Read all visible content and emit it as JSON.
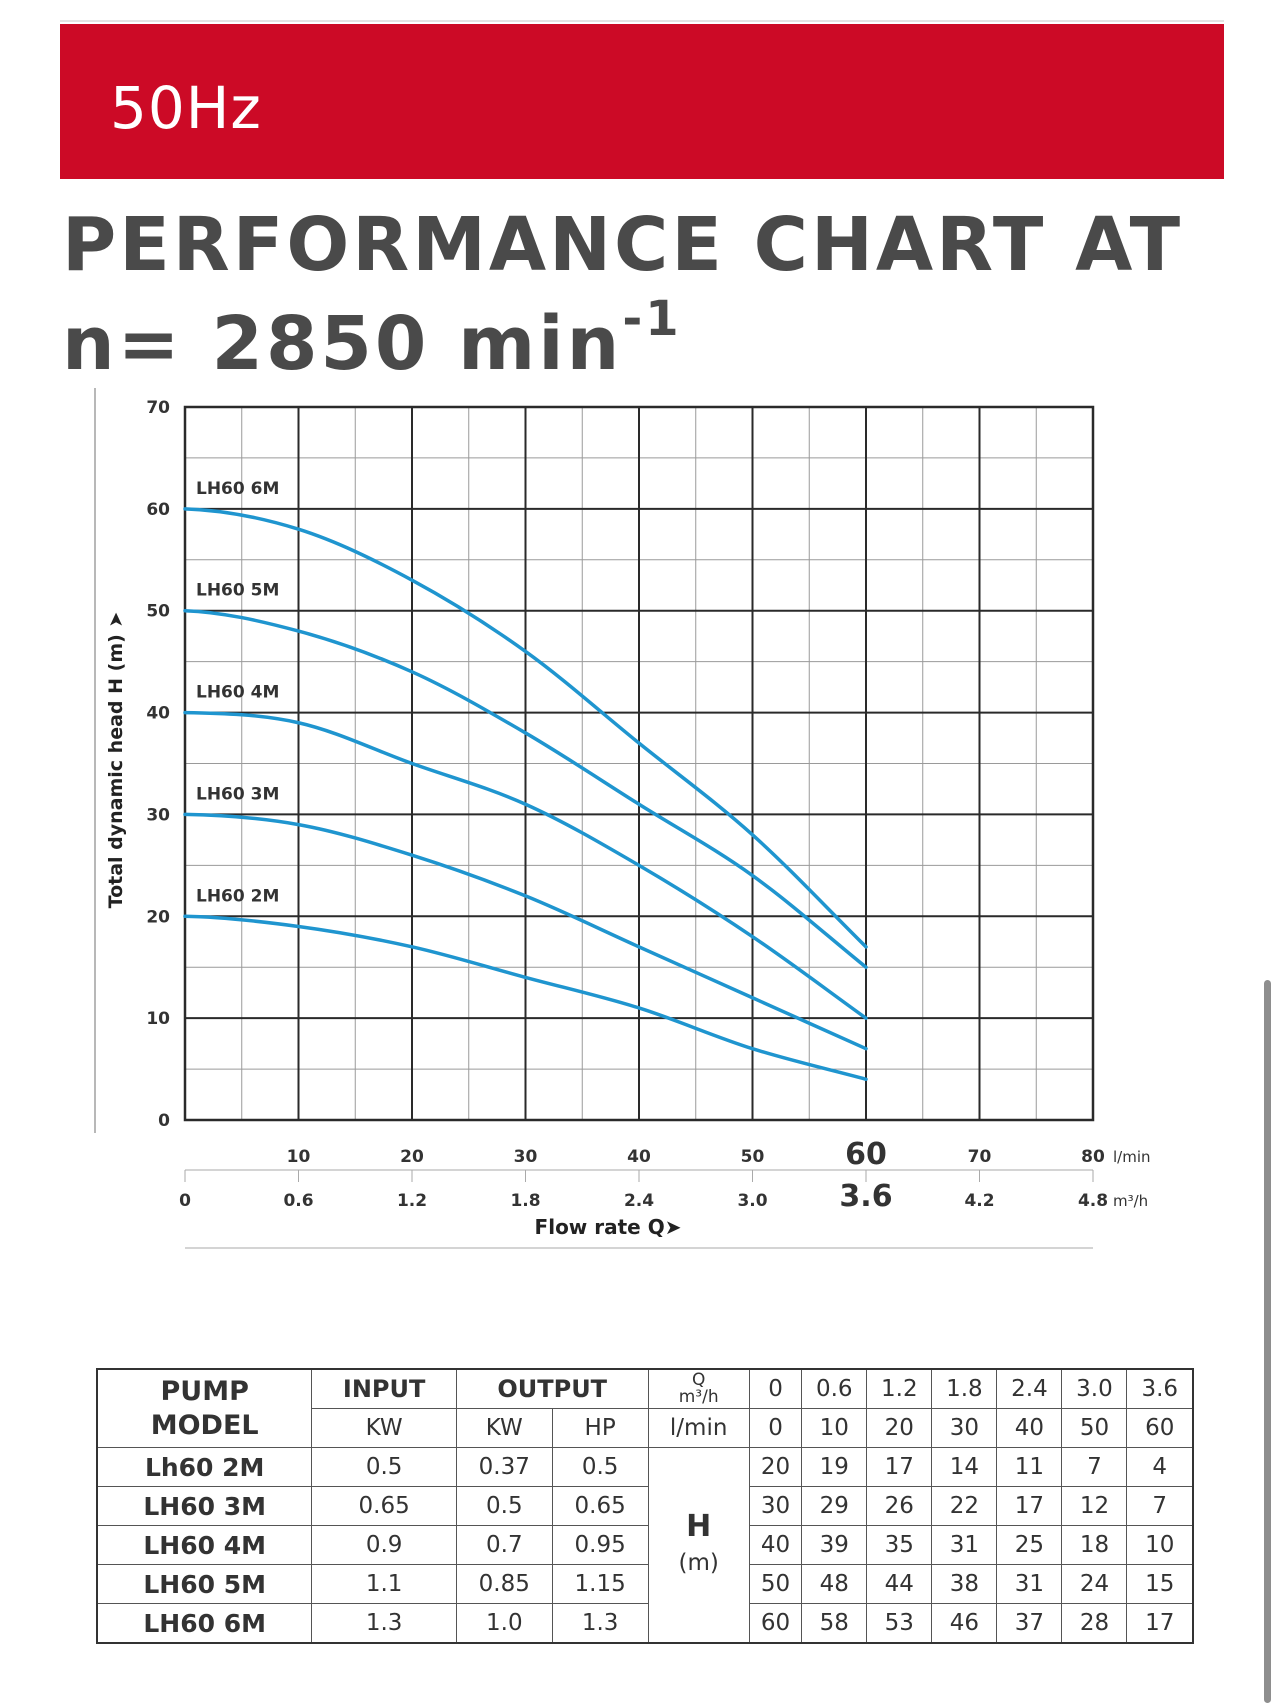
{
  "banner": {
    "text": "50Hz",
    "color": "#cc0a26"
  },
  "title": {
    "line1": "PERFORMANCE CHART AT",
    "line2_main": "n= 2850 min",
    "line2_sup": "-1"
  },
  "chart_data": {
    "type": "line",
    "title": "PERFORMANCE CHART AT n= 2850 min-1",
    "ylabel": "Total dynamic head H (m)",
    "xlabel": "Flow rate Q",
    "ylim": [
      0,
      70
    ],
    "xlim": [
      0,
      80
    ],
    "y_ticks": [
      "0",
      "10",
      "20",
      "30",
      "40",
      "50",
      "60",
      "70"
    ],
    "x_ticks_lmin": [
      "10",
      "20",
      "30",
      "40",
      "50",
      "60",
      "70",
      "80"
    ],
    "x_unit_lmin": "l/min",
    "x_ticks_m3h": [
      "0",
      "0.6",
      "1.2",
      "1.8",
      "2.4",
      "3.0",
      "3.6",
      "4.2",
      "4.8"
    ],
    "x_unit_m3h": "m³/h",
    "highlight_lmin": "60",
    "highlight_m3h": "3.6",
    "x": [
      0,
      10,
      20,
      30,
      40,
      50,
      60
    ],
    "series_color": "#1f95cf",
    "series": [
      {
        "name": "LH60 6M",
        "values": [
          60,
          58,
          53,
          46,
          37,
          28,
          17
        ]
      },
      {
        "name": "LH60 5M",
        "values": [
          50,
          48,
          44,
          38,
          31,
          24,
          15
        ]
      },
      {
        "name": "LH60 4M",
        "values": [
          40,
          39,
          35,
          31,
          25,
          18,
          10
        ]
      },
      {
        "name": "LH60 3M",
        "values": [
          30,
          29,
          26,
          22,
          17,
          12,
          7
        ]
      },
      {
        "name": "LH60 2M",
        "values": [
          20,
          19,
          17,
          14,
          11,
          7,
          4
        ]
      }
    ]
  },
  "table": {
    "pump_model_l1": "PUMP",
    "pump_model_l2": "MODEL",
    "input": "INPUT",
    "output": "OUTPUT",
    "q_label": "Q",
    "q_unit": "m³/h",
    "input_unit": "KW",
    "output_kw": "KW",
    "output_hp": "HP",
    "lmin": "l/min",
    "h_label": "H",
    "h_unit": "(m)",
    "q_m3h": [
      "0",
      "0.6",
      "1.2",
      "1.8",
      "2.4",
      "3.0",
      "3.6"
    ],
    "q_lmin": [
      "0",
      "10",
      "20",
      "30",
      "40",
      "50",
      "60"
    ],
    "rows": [
      {
        "model": "Lh60 2M",
        "kw_in": "0.5",
        "kw_out": "0.37",
        "hp": "0.5",
        "h": [
          "20",
          "19",
          "17",
          "14",
          "11",
          "7",
          "4"
        ]
      },
      {
        "model": "LH60 3M",
        "kw_in": "0.65",
        "kw_out": "0.5",
        "hp": "0.65",
        "h": [
          "30",
          "29",
          "26",
          "22",
          "17",
          "12",
          "7"
        ]
      },
      {
        "model": "LH60 4M",
        "kw_in": "0.9",
        "kw_out": "0.7",
        "hp": "0.95",
        "h": [
          "40",
          "39",
          "35",
          "31",
          "25",
          "18",
          "10"
        ]
      },
      {
        "model": "LH60 5M",
        "kw_in": "1.1",
        "kw_out": "0.85",
        "hp": "1.15",
        "h": [
          "50",
          "48",
          "44",
          "38",
          "31",
          "24",
          "15"
        ]
      },
      {
        "model": "LH60 6M",
        "kw_in": "1.3",
        "kw_out": "1.0",
        "hp": "1.3",
        "h": [
          "60",
          "58",
          "53",
          "46",
          "37",
          "28",
          "17"
        ]
      }
    ]
  }
}
